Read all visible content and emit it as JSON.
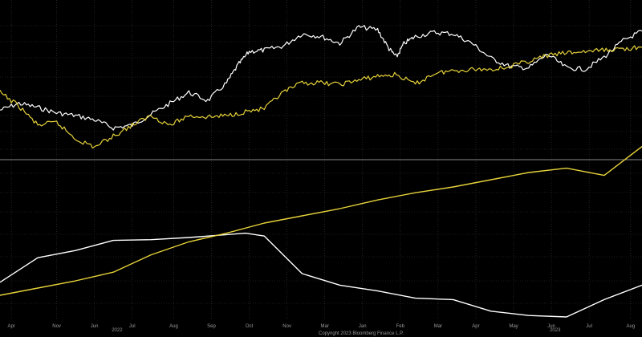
{
  "copyright": "Copyright 2023 Bloomberg Finance L.P.",
  "colors": {
    "background": "#000000",
    "grid": "#3a3a3a",
    "divider": "#8a8a8a",
    "white_series": "#ffffff",
    "yellow_series": "#e6d23a",
    "text": "#9a9a9a"
  },
  "chart_data": [
    {
      "type": "line",
      "panel": "upper",
      "grid": true,
      "y_range": [
        0,
        100
      ],
      "x_range": [
        0,
        17
      ],
      "series": [
        {
          "color": "#ffffff",
          "x": [
            0,
            0.5,
            1,
            1.5,
            2,
            2.5,
            3,
            3.5,
            4,
            4.5,
            5,
            5.5,
            6,
            6.3,
            6.6,
            7,
            7.5,
            8,
            8.5,
            9,
            9.5,
            10,
            10.3,
            10.5,
            10.7,
            11,
            11.5,
            12,
            12.5,
            13,
            13.5,
            14,
            14.5,
            15,
            15.5,
            16,
            16.5,
            17
          ],
          "y": [
            31,
            36,
            33,
            29,
            27,
            24,
            18,
            20,
            28,
            36,
            44,
            38,
            51,
            64,
            74,
            75,
            78,
            87,
            85,
            80,
            92,
            90,
            76,
            70,
            80,
            85,
            88,
            87,
            80,
            69,
            63,
            62,
            72,
            62,
            61,
            70,
            82,
            89
          ]
        },
        {
          "color": "#e6d23a",
          "x": [
            0,
            0.5,
            1,
            1.5,
            2,
            2.5,
            3,
            3.5,
            4,
            4.5,
            5,
            5.5,
            6,
            6.5,
            7,
            7.5,
            8,
            8.5,
            9,
            9.5,
            10,
            10.5,
            11,
            11.5,
            12,
            12.5,
            13,
            13.5,
            14,
            14.5,
            15,
            15.5,
            16,
            16.5,
            17
          ],
          "y": [
            44,
            34,
            20,
            22,
            10,
            4,
            12,
            20,
            27,
            20,
            27,
            26,
            27,
            30,
            32,
            44,
            51,
            51,
            50,
            53,
            56,
            57,
            50,
            58,
            60,
            61,
            61,
            63,
            67,
            71,
            73,
            74,
            75,
            76,
            77
          ]
        }
      ]
    },
    {
      "type": "line",
      "panel": "lower",
      "grid": true,
      "y_range": [
        0,
        100
      ],
      "x_range": [
        0,
        17
      ],
      "series": [
        {
          "color": "#ffffff",
          "x": [
            0,
            1,
            2,
            3,
            4,
            5,
            6,
            6.5,
            7,
            8,
            9,
            10,
            11,
            12,
            13,
            14,
            15,
            16,
            17
          ],
          "y": [
            24,
            41,
            46,
            53,
            53.5,
            55,
            57,
            58,
            56,
            30,
            22,
            18,
            13,
            12,
            4,
            1,
            0,
            12,
            22
          ]
        },
        {
          "color": "#e6d23a",
          "x": [
            0,
            1,
            2,
            3,
            4,
            5,
            6,
            7,
            8,
            9,
            10,
            11,
            12,
            13,
            14,
            15,
            16,
            17
          ],
          "y": [
            15,
            20,
            25,
            31,
            43,
            52,
            58,
            65,
            70,
            75,
            81,
            86,
            90,
            95,
            100,
            103,
            98,
            118
          ]
        }
      ]
    }
  ],
  "x_axis": {
    "ticks": [
      {
        "label": "Apr",
        "x": 0.3
      },
      {
        "label": "Nov",
        "x": 1.5
      },
      {
        "label": "Jun",
        "x": 2.5
      },
      {
        "label": "Jul",
        "x": 3.5
      },
      {
        "label": "Aug",
        "x": 4.6
      },
      {
        "label": "Sep",
        "x": 5.6
      },
      {
        "label": "Oct",
        "x": 6.6
      },
      {
        "label": "Nov",
        "x": 7.6
      },
      {
        "label": "Mar",
        "x": 8.6
      },
      {
        "label": "Jan",
        "x": 9.6
      },
      {
        "label": "Feb",
        "x": 10.6
      },
      {
        "label": "Mar",
        "x": 11.6
      },
      {
        "label": "Apr",
        "x": 12.6
      },
      {
        "label": "May",
        "x": 13.6
      },
      {
        "label": "Jun",
        "x": 14.6
      },
      {
        "label": "Jul",
        "x": 15.6
      },
      {
        "label": "Aug",
        "x": 16.7
      }
    ],
    "years": [
      {
        "label": "2022",
        "x": 3.1
      },
      {
        "label": "2023",
        "x": 14.7
      }
    ]
  }
}
